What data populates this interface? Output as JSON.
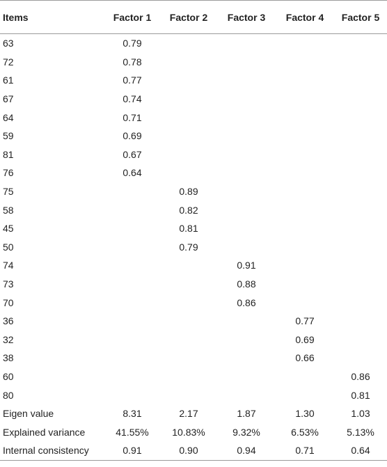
{
  "table": {
    "headers": [
      "Items",
      "Factor 1",
      "Factor 2",
      "Factor 3",
      "Factor 4",
      "Factor 5"
    ],
    "rows": [
      [
        "63",
        "0.79",
        "",
        "",
        "",
        ""
      ],
      [
        "72",
        "0.78",
        "",
        "",
        "",
        ""
      ],
      [
        "61",
        "0.77",
        "",
        "",
        "",
        ""
      ],
      [
        "67",
        "0.74",
        "",
        "",
        "",
        ""
      ],
      [
        "64",
        "0.71",
        "",
        "",
        "",
        ""
      ],
      [
        "59",
        "0.69",
        "",
        "",
        "",
        ""
      ],
      [
        "81",
        "0.67",
        "",
        "",
        "",
        ""
      ],
      [
        "76",
        "0.64",
        "",
        "",
        "",
        ""
      ],
      [
        "75",
        "",
        "0.89",
        "",
        "",
        ""
      ],
      [
        "58",
        "",
        "0.82",
        "",
        "",
        ""
      ],
      [
        "45",
        "",
        "0.81",
        "",
        "",
        ""
      ],
      [
        "50",
        "",
        "0.79",
        "",
        "",
        ""
      ],
      [
        "74",
        "",
        "",
        "0.91",
        "",
        ""
      ],
      [
        "73",
        "",
        "",
        "0.88",
        "",
        ""
      ],
      [
        "70",
        "",
        "",
        "0.86",
        "",
        ""
      ],
      [
        "36",
        "",
        "",
        "",
        "0.77",
        ""
      ],
      [
        "32",
        "",
        "",
        "",
        "0.69",
        ""
      ],
      [
        "38",
        "",
        "",
        "",
        "0.66",
        ""
      ],
      [
        "60",
        "",
        "",
        "",
        "",
        "0.86"
      ],
      [
        "80",
        "",
        "",
        "",
        "",
        "0.81"
      ],
      [
        "Eigen value",
        "8.31",
        "2.17",
        "1.87",
        "1.30",
        "1.03"
      ],
      [
        "Explained variance",
        "41.55%",
        "10.83%",
        "9.32%",
        "6.53%",
        "5.13%"
      ],
      [
        "Internal consistency",
        "0.91",
        "0.90",
        "0.94",
        "0.71",
        "0.64"
      ]
    ]
  }
}
